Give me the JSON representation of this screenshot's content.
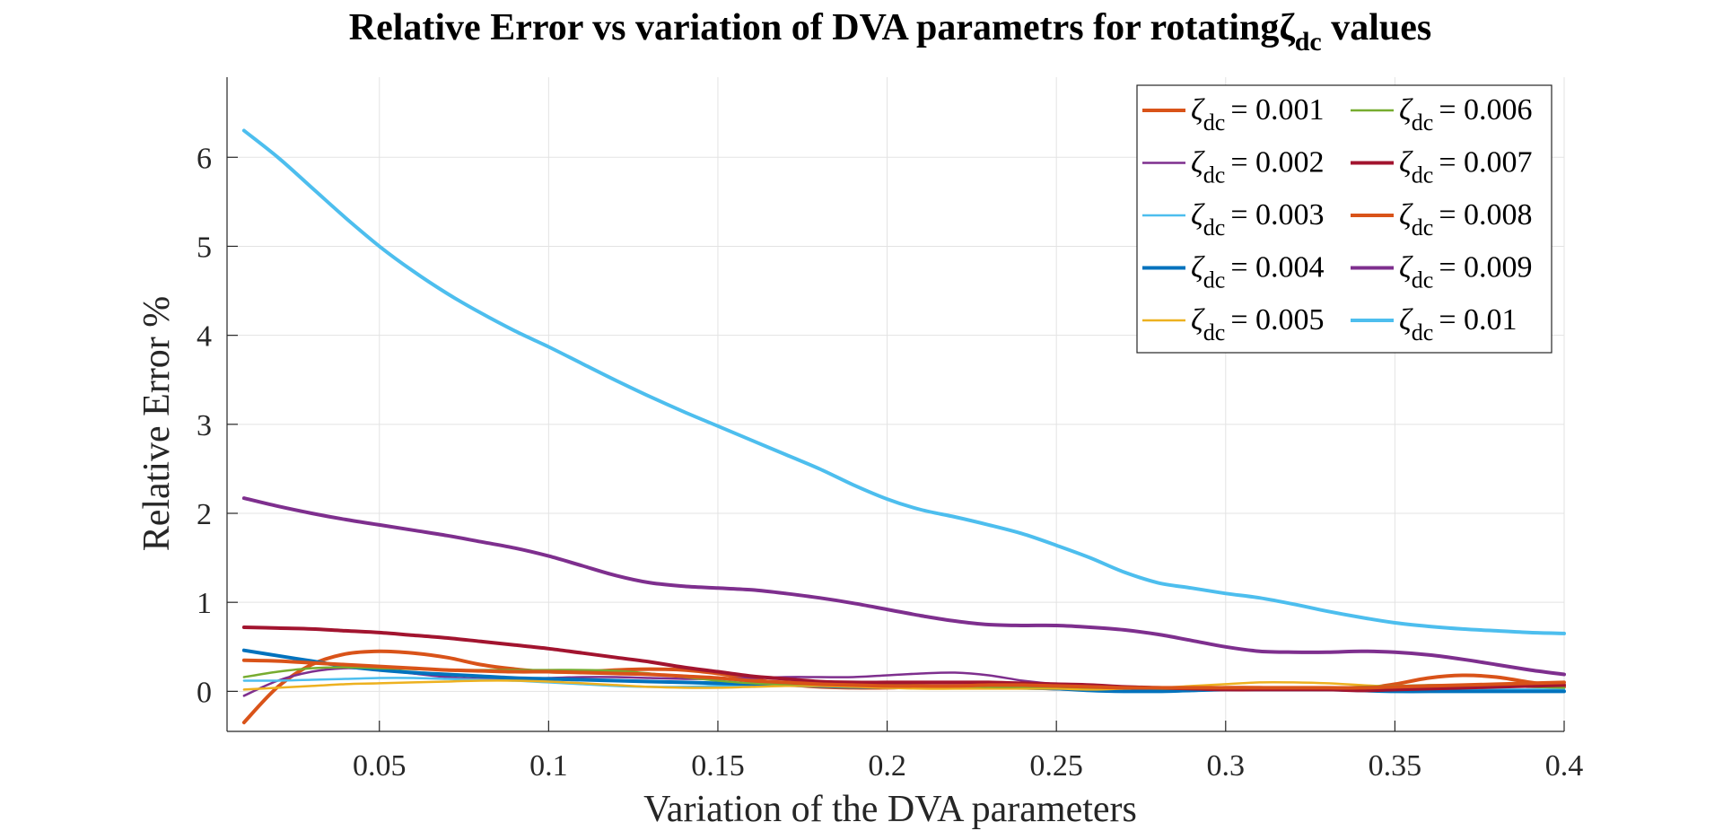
{
  "chart_data": {
    "type": "line",
    "title": "Relative Error vs variation of DVA parametrs for rotatingζ",
    "title_subscript": "dc",
    "title_suffix": " values",
    "xlabel": "Variation of the DVA parameters",
    "ylabel": "Relative Error %",
    "xlim": [
      0.005,
      0.4
    ],
    "ylim": [
      -0.45,
      6.9
    ],
    "xticks": [
      0.05,
      0.1,
      0.15,
      0.2,
      0.25,
      0.3,
      0.35,
      0.4
    ],
    "xtick_labels": [
      "0.05",
      "0.1",
      "0.15",
      "0.2",
      "0.25",
      "0.3",
      "0.35",
      "0.4"
    ],
    "yticks": [
      0,
      1,
      2,
      3,
      4,
      5,
      6
    ],
    "ytick_labels": [
      "0",
      "1",
      "2",
      "3",
      "4",
      "5",
      "6"
    ],
    "grid": true,
    "legend_position": "top-right",
    "legend_columns": 2,
    "x": [
      0.01,
      0.02,
      0.03,
      0.04,
      0.05,
      0.06,
      0.07,
      0.08,
      0.09,
      0.1,
      0.11,
      0.12,
      0.13,
      0.14,
      0.15,
      0.16,
      0.17,
      0.18,
      0.19,
      0.2,
      0.21,
      0.22,
      0.23,
      0.24,
      0.25,
      0.26,
      0.27,
      0.28,
      0.29,
      0.3,
      0.31,
      0.32,
      0.33,
      0.34,
      0.35,
      0.36,
      0.37,
      0.38,
      0.39,
      0.4
    ],
    "series": [
      {
        "name": "ζdc = 0.001",
        "symbol": "ζ",
        "sub": "dc",
        "label": "= 0.001",
        "color": "#D95319",
        "width": 4,
        "values": [
          -0.35,
          0.05,
          0.3,
          0.42,
          0.45,
          0.43,
          0.38,
          0.3,
          0.25,
          0.22,
          0.22,
          0.24,
          0.25,
          0.24,
          0.2,
          0.14,
          0.08,
          0.05,
          0.04,
          0.04,
          0.05,
          0.05,
          0.05,
          0.04,
          0.03,
          0.02,
          0.01,
          0.02,
          0.03,
          0.04,
          0.04,
          0.03,
          0.02,
          0.03,
          0.08,
          0.15,
          0.18,
          0.16,
          0.1,
          0.05
        ]
      },
      {
        "name": "ζdc = 0.002",
        "symbol": "ζ",
        "sub": "dc",
        "label": "= 0.002",
        "color": "#7E2F8E",
        "width": 2.5,
        "values": [
          -0.05,
          0.12,
          0.22,
          0.26,
          0.24,
          0.2,
          0.16,
          0.14,
          0.14,
          0.15,
          0.16,
          0.16,
          0.15,
          0.14,
          0.14,
          0.15,
          0.16,
          0.16,
          0.16,
          0.18,
          0.2,
          0.21,
          0.18,
          0.12,
          0.08,
          0.06,
          0.05,
          0.04,
          0.04,
          0.04,
          0.04,
          0.03,
          0.03,
          0.03,
          0.04,
          0.05,
          0.06,
          0.06,
          0.05,
          0.04
        ]
      },
      {
        "name": "ζdc = 0.003",
        "symbol": "ζ",
        "sub": "dc",
        "label": "= 0.003",
        "color": "#4DBEEE",
        "width": 2.5,
        "values": [
          0.12,
          0.12,
          0.13,
          0.14,
          0.15,
          0.15,
          0.14,
          0.13,
          0.12,
          0.1,
          0.08,
          0.06,
          0.05,
          0.05,
          0.06,
          0.07,
          0.07,
          0.06,
          0.05,
          0.04,
          0.04,
          0.04,
          0.04,
          0.03,
          0.03,
          0.02,
          0.02,
          0.02,
          0.02,
          0.02,
          0.02,
          0.02,
          0.02,
          0.02,
          0.02,
          0.02,
          0.02,
          0.02,
          0.02,
          0.02
        ]
      },
      {
        "name": "ζdc = 0.004",
        "symbol": "ζ",
        "sub": "dc",
        "label": "= 0.004",
        "color": "#0072BD",
        "width": 4,
        "values": [
          0.46,
          0.4,
          0.34,
          0.28,
          0.24,
          0.21,
          0.19,
          0.17,
          0.15,
          0.14,
          0.13,
          0.12,
          0.11,
          0.1,
          0.09,
          0.08,
          0.07,
          0.06,
          0.05,
          0.05,
          0.05,
          0.05,
          0.05,
          0.04,
          0.03,
          0.01,
          0.0,
          0.0,
          0.01,
          0.02,
          0.02,
          0.02,
          0.02,
          0.01,
          0.0,
          0.0,
          0.0,
          0.0,
          0.0,
          0.0
        ]
      },
      {
        "name": "ζdc = 0.005",
        "symbol": "ζ",
        "sub": "dc",
        "label": "= 0.005",
        "color": "#EDB120",
        "width": 2.5,
        "values": [
          0.02,
          0.04,
          0.06,
          0.08,
          0.09,
          0.1,
          0.11,
          0.12,
          0.12,
          0.11,
          0.09,
          0.07,
          0.05,
          0.04,
          0.04,
          0.05,
          0.06,
          0.06,
          0.05,
          0.04,
          0.03,
          0.03,
          0.03,
          0.03,
          0.03,
          0.02,
          0.03,
          0.04,
          0.06,
          0.08,
          0.1,
          0.1,
          0.09,
          0.07,
          0.05,
          0.04,
          0.05,
          0.06,
          0.07,
          0.08
        ]
      },
      {
        "name": "ζdc = 0.006",
        "symbol": "ζ",
        "sub": "dc",
        "label": "= 0.006",
        "color": "#77AC30",
        "width": 2.5,
        "values": [
          0.16,
          0.22,
          0.26,
          0.27,
          0.26,
          0.25,
          0.24,
          0.24,
          0.24,
          0.24,
          0.24,
          0.23,
          0.2,
          0.16,
          0.12,
          0.09,
          0.08,
          0.08,
          0.08,
          0.08,
          0.07,
          0.06,
          0.05,
          0.05,
          0.05,
          0.04,
          0.04,
          0.03,
          0.03,
          0.03,
          0.03,
          0.03,
          0.04,
          0.05,
          0.06,
          0.07,
          0.07,
          0.06,
          0.05,
          0.04
        ]
      },
      {
        "name": "ζdc = 0.007",
        "symbol": "ζ",
        "sub": "dc",
        "label": "= 0.007",
        "color": "#A2142F",
        "width": 4,
        "values": [
          0.72,
          0.71,
          0.7,
          0.68,
          0.66,
          0.63,
          0.6,
          0.56,
          0.52,
          0.48,
          0.43,
          0.38,
          0.33,
          0.27,
          0.22,
          0.17,
          0.14,
          0.11,
          0.1,
          0.1,
          0.1,
          0.1,
          0.1,
          0.09,
          0.08,
          0.07,
          0.05,
          0.04,
          0.03,
          0.02,
          0.02,
          0.02,
          0.02,
          0.01,
          0.02,
          0.03,
          0.04,
          0.05,
          0.06,
          0.07
        ]
      },
      {
        "name": "ζdc = 0.008",
        "symbol": "ζ",
        "sub": "dc",
        "label": "= 0.008",
        "color": "#D95319",
        "width": 4,
        "values": [
          0.35,
          0.34,
          0.32,
          0.3,
          0.28,
          0.26,
          0.24,
          0.23,
          0.22,
          0.22,
          0.21,
          0.2,
          0.19,
          0.17,
          0.15,
          0.12,
          0.1,
          0.08,
          0.07,
          0.06,
          0.06,
          0.06,
          0.07,
          0.07,
          0.06,
          0.05,
          0.04,
          0.04,
          0.04,
          0.04,
          0.04,
          0.04,
          0.04,
          0.04,
          0.05,
          0.06,
          0.07,
          0.08,
          0.09,
          0.1
        ]
      },
      {
        "name": "ζdc = 0.009",
        "symbol": "ζ",
        "sub": "dc",
        "label": "= 0.009",
        "color": "#7E2F8E",
        "width": 4,
        "values": [
          2.17,
          2.08,
          2.0,
          1.93,
          1.87,
          1.81,
          1.75,
          1.68,
          1.61,
          1.52,
          1.41,
          1.3,
          1.22,
          1.18,
          1.16,
          1.14,
          1.1,
          1.05,
          0.99,
          0.92,
          0.85,
          0.79,
          0.75,
          0.74,
          0.74,
          0.72,
          0.69,
          0.64,
          0.57,
          0.5,
          0.45,
          0.44,
          0.44,
          0.45,
          0.44,
          0.41,
          0.36,
          0.3,
          0.24,
          0.19
        ]
      },
      {
        "name": "ζdc = 0.01",
        "symbol": "ζ",
        "sub": "dc",
        "label": "= 0.01",
        "color": "#4DBEEE",
        "width": 4,
        "values": [
          6.3,
          6.0,
          5.66,
          5.32,
          5.0,
          4.72,
          4.47,
          4.25,
          4.05,
          3.87,
          3.68,
          3.49,
          3.31,
          3.14,
          2.98,
          2.82,
          2.66,
          2.5,
          2.32,
          2.16,
          2.04,
          1.96,
          1.87,
          1.77,
          1.64,
          1.5,
          1.34,
          1.22,
          1.16,
          1.1,
          1.05,
          0.98,
          0.9,
          0.83,
          0.77,
          0.73,
          0.7,
          0.68,
          0.66,
          0.65
        ]
      }
    ]
  }
}
